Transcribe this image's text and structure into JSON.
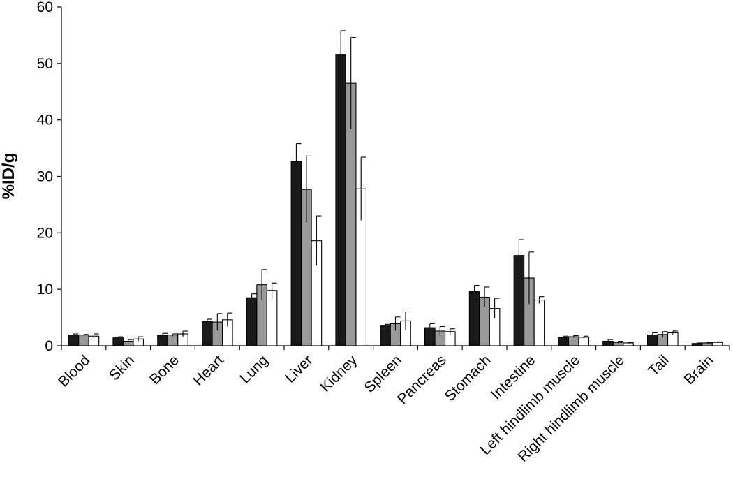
{
  "chart_data": {
    "type": "bar",
    "title": "",
    "xlabel": "",
    "ylabel": "%ID/g",
    "ylim": [
      0,
      60
    ],
    "yticks": [
      "0",
      "10",
      "20",
      "30",
      "40",
      "50",
      "60"
    ],
    "grid": false,
    "legend": "none",
    "categories": [
      "Blood",
      "Skin",
      "Bone",
      "Heart",
      "Lung",
      "Liver",
      "Kidney",
      "Spleen",
      "Pancreas",
      "Stomach",
      "Intestine",
      "Left hindlimb muscle",
      "Right hindlimb muscle",
      "Tail",
      "Brain"
    ],
    "series": [
      {
        "color": "#1a1a1a",
        "values": [
          1.9,
          1.4,
          1.8,
          4.3,
          8.5,
          32.6,
          51.5,
          3.5,
          3.2,
          9.6,
          16.0,
          1.5,
          0.8,
          1.9,
          0.4
        ],
        "errors": [
          0.2,
          0.2,
          0.4,
          0.4,
          0.7,
          3.2,
          4.3,
          0.3,
          0.7,
          1.1,
          2.8,
          0.2,
          0.3,
          0.4,
          0.1
        ]
      },
      {
        "color": "#999999",
        "values": [
          1.9,
          0.8,
          1.9,
          4.2,
          10.8,
          27.7,
          46.5,
          3.9,
          2.6,
          8.6,
          12.0,
          1.6,
          0.6,
          2.0,
          0.5
        ],
        "errors": [
          0.1,
          0.3,
          0.2,
          1.5,
          2.7,
          5.9,
          8.1,
          1.2,
          0.8,
          1.8,
          4.6,
          0.2,
          0.2,
          0.5,
          0.1
        ]
      },
      {
        "color": "#ffffff",
        "values": [
          1.7,
          1.2,
          2.1,
          4.6,
          9.8,
          18.6,
          27.8,
          4.4,
          2.5,
          6.6,
          8.1,
          1.5,
          0.5,
          2.3,
          0.6
        ],
        "errors": [
          0.4,
          0.4,
          0.5,
          1.2,
          1.3,
          4.4,
          5.6,
          1.6,
          0.5,
          1.8,
          0.6,
          0.2,
          0.1,
          0.3,
          0.1
        ]
      }
    ]
  }
}
